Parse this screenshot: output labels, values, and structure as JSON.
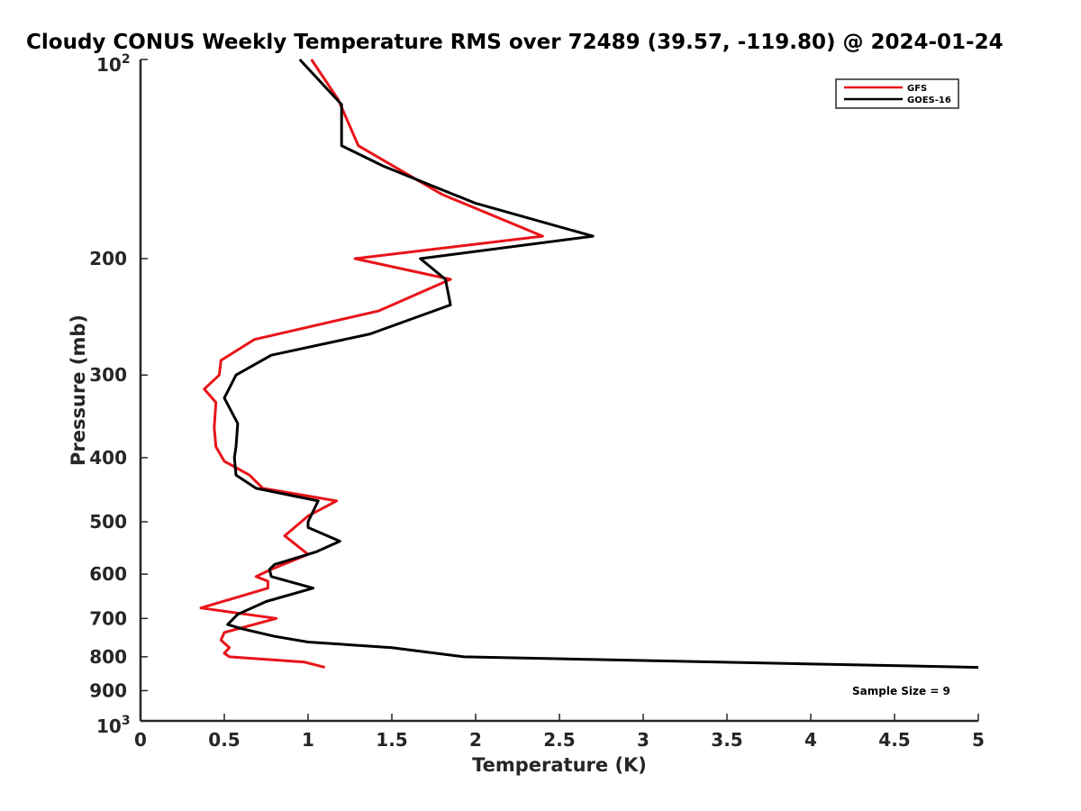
{
  "chart_data": {
    "type": "line",
    "title": "Cloudy CONUS Weekly Temperature RMS over 72489 (39.57, -119.80) @ 2024-01-24",
    "xlabel": "Temperature (K)",
    "ylabel": "Pressure (mb)",
    "xlim": [
      0,
      5
    ],
    "ylim": [
      1000,
      100
    ],
    "y_scale": "log",
    "y_reversed": true,
    "x_ticks": [
      "0",
      "0.5",
      "1",
      "1.5",
      "2",
      "2.5",
      "3",
      "3.5",
      "4",
      "4.5",
      "5"
    ],
    "y_ticks": [
      {
        "value": 100,
        "base": "10",
        "exp": "2",
        "label": ""
      },
      {
        "value": 200,
        "label": "200"
      },
      {
        "value": 300,
        "label": "300"
      },
      {
        "value": 400,
        "label": "400"
      },
      {
        "value": 500,
        "label": "500"
      },
      {
        "value": 600,
        "label": "600"
      },
      {
        "value": 700,
        "label": "700"
      },
      {
        "value": 800,
        "label": "800"
      },
      {
        "value": 900,
        "label": "900"
      },
      {
        "value": 1000,
        "base": "10",
        "exp": "3",
        "label": ""
      }
    ],
    "grid": false,
    "legend_position": "top-right",
    "series": [
      {
        "name": "GFS",
        "color": "#e8141a",
        "points": [
          [
            1.02,
            100
          ],
          [
            1.18,
            115
          ],
          [
            1.3,
            135
          ],
          [
            1.8,
            160
          ],
          [
            2.4,
            185
          ],
          [
            1.28,
            200
          ],
          [
            1.85,
            215
          ],
          [
            1.42,
            240
          ],
          [
            0.68,
            265
          ],
          [
            0.48,
            285
          ],
          [
            0.47,
            300
          ],
          [
            0.38,
            315
          ],
          [
            0.45,
            330
          ],
          [
            0.44,
            360
          ],
          [
            0.45,
            385
          ],
          [
            0.5,
            405
          ],
          [
            0.65,
            425
          ],
          [
            0.73,
            445
          ],
          [
            1.17,
            465
          ],
          [
            1.0,
            490
          ],
          [
            0.86,
            525
          ],
          [
            1.0,
            560
          ],
          [
            0.78,
            590
          ],
          [
            0.69,
            605
          ],
          [
            0.76,
            615
          ],
          [
            0.76,
            630
          ],
          [
            0.36,
            675
          ],
          [
            0.81,
            700
          ],
          [
            0.5,
            735
          ],
          [
            0.48,
            755
          ],
          [
            0.53,
            775
          ],
          [
            0.5,
            790
          ],
          [
            0.53,
            800
          ],
          [
            0.98,
            815
          ],
          [
            1.1,
            830
          ]
        ]
      },
      {
        "name": "GOES-16",
        "color": "#000000",
        "points": [
          [
            0.95,
            100
          ],
          [
            1.2,
            117
          ],
          [
            1.2,
            135
          ],
          [
            1.45,
            145
          ],
          [
            2.0,
            165
          ],
          [
            2.7,
            185
          ],
          [
            1.67,
            200
          ],
          [
            1.82,
            215
          ],
          [
            1.85,
            235
          ],
          [
            1.37,
            260
          ],
          [
            0.78,
            280
          ],
          [
            0.57,
            300
          ],
          [
            0.5,
            325
          ],
          [
            0.58,
            355
          ],
          [
            0.57,
            385
          ],
          [
            0.56,
            400
          ],
          [
            0.57,
            425
          ],
          [
            0.69,
            445
          ],
          [
            1.06,
            465
          ],
          [
            1.0,
            500
          ],
          [
            1.0,
            510
          ],
          [
            1.19,
            535
          ],
          [
            1.05,
            555
          ],
          [
            0.8,
            580
          ],
          [
            0.77,
            590
          ],
          [
            0.78,
            605
          ],
          [
            1.03,
            630
          ],
          [
            0.75,
            660
          ],
          [
            0.58,
            690
          ],
          [
            0.52,
            715
          ],
          [
            0.6,
            725
          ],
          [
            0.8,
            745
          ],
          [
            1.0,
            760
          ],
          [
            1.5,
            775
          ],
          [
            1.93,
            800
          ],
          [
            5.0,
            830
          ]
        ]
      }
    ],
    "annotations": [
      "Sample Size = 9"
    ]
  }
}
